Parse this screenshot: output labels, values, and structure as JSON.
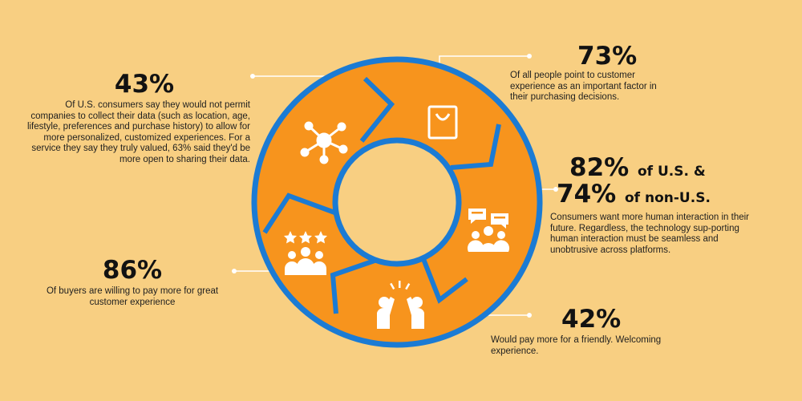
{
  "colors": {
    "background": "#F8CF82",
    "ring": "#F7941D",
    "ring_outline": "#1B7BD4",
    "icon": "#FFFFFF",
    "text": "#121212"
  },
  "icons": [
    "network-hub-icon",
    "shopping-bag-icon",
    "group-chat-icon",
    "high-five-icon",
    "rated-team-icon"
  ],
  "stats": {
    "s43": {
      "value": "43%",
      "text": "Of U.S. consumers say they would not permit companies to collect their data (such as location, age, lifestyle, preferences and purchase history) to allow for more personalized, customized experiences. For a service they say they truly valued, 63% said they'd be more open to sharing their data."
    },
    "s73": {
      "value": "73%",
      "text": "Of all people point to customer experience as an important factor in their purchasing decisions."
    },
    "s82": {
      "value_a": "82%",
      "suffix_a": "of U.S. &",
      "value_b": "74%",
      "suffix_b": "of non-U.S.",
      "text": "Consumers want more human interaction in their future. Regardless, the technology sup-porting human interaction must be seamless and unobtrusive across platforms."
    },
    "s86": {
      "value": "86%",
      "text": "Of buyers are willing to pay more for great customer experience"
    },
    "s42": {
      "value": "42%",
      "text": "Would pay more for a friendly. Welcoming experience."
    }
  }
}
